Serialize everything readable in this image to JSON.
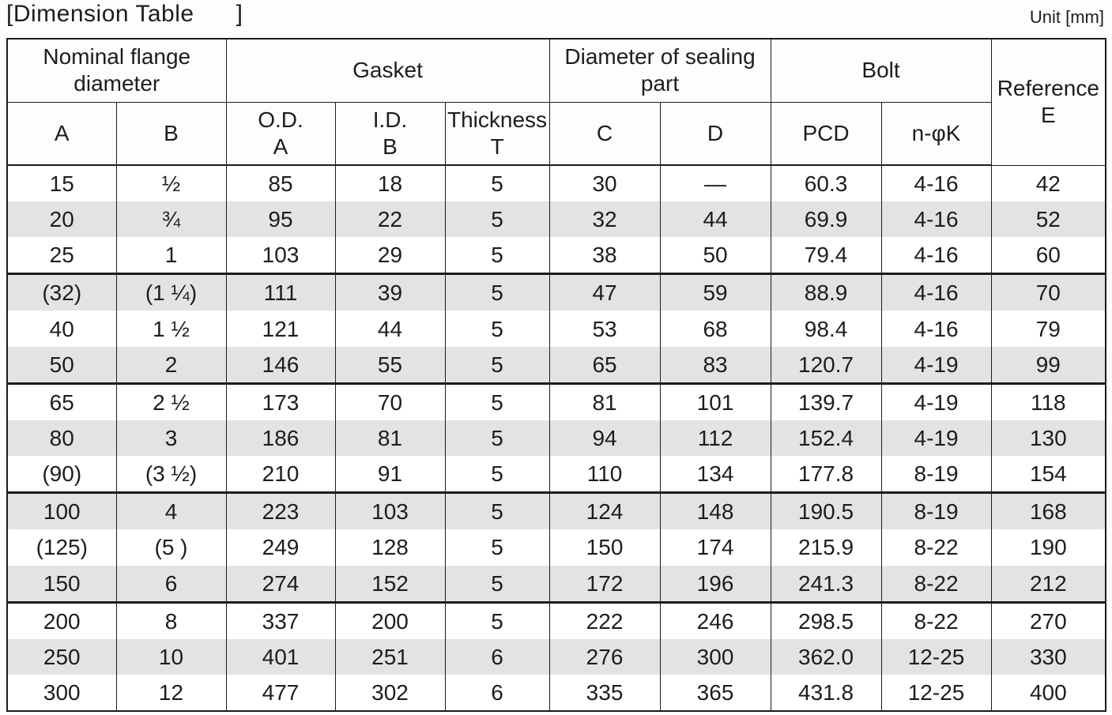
{
  "page": {
    "title": "[Dimension Table      ]",
    "unit_label": "Unit [mm]"
  },
  "colors": {
    "stripe": "#e3e3e3",
    "border": "#1c1c1c",
    "text": "#1d1d1d",
    "background": "#fdfdfd"
  },
  "table": {
    "group_headers": [
      {
        "lines": [
          "Nominal flange",
          "diameter"
        ],
        "span": 2
      },
      {
        "lines": [
          "Gasket"
        ],
        "span": 3
      },
      {
        "lines": [
          "Diameter of sealing",
          "part"
        ],
        "span": 2
      },
      {
        "lines": [
          "Bolt"
        ],
        "span": 2
      }
    ],
    "reference_header": {
      "lines": [
        "Reference",
        "E"
      ]
    },
    "sub_headers": [
      {
        "lines": [
          "A"
        ]
      },
      {
        "lines": [
          "B"
        ]
      },
      {
        "lines": [
          "O.D.",
          "A"
        ]
      },
      {
        "lines": [
          "I.D.",
          "B"
        ]
      },
      {
        "lines": [
          "Thickness",
          "T"
        ]
      },
      {
        "lines": [
          "C"
        ]
      },
      {
        "lines": [
          "D"
        ]
      },
      {
        "lines": [
          "PCD"
        ]
      },
      {
        "lines": [
          "n-φK"
        ]
      }
    ],
    "rows": [
      [
        "15",
        "½",
        "85",
        "18",
        "5",
        "30",
        "—",
        "60.3",
        "4-16",
        "42"
      ],
      [
        "20",
        "¾",
        "95",
        "22",
        "5",
        "32",
        "44",
        "69.9",
        "4-16",
        "52"
      ],
      [
        "25",
        "1",
        "103",
        "29",
        "5",
        "38",
        "50",
        "79.4",
        "4-16",
        "60"
      ],
      [
        "(32)",
        "(1 ¼)",
        "111",
        "39",
        "5",
        "47",
        "59",
        "88.9",
        "4-16",
        "70"
      ],
      [
        "40",
        "1 ½",
        "121",
        "44",
        "5",
        "53",
        "68",
        "98.4",
        "4-16",
        "79"
      ],
      [
        "50",
        "2",
        "146",
        "55",
        "5",
        "65",
        "83",
        "120.7",
        "4-19",
        "99"
      ],
      [
        "65",
        "2 ½",
        "173",
        "70",
        "5",
        "81",
        "101",
        "139.7",
        "4-19",
        "118"
      ],
      [
        "80",
        "3",
        "186",
        "81",
        "5",
        "94",
        "112",
        "152.4",
        "4-19",
        "130"
      ],
      [
        "(90)",
        "(3 ½)",
        "210",
        "91",
        "5",
        "110",
        "134",
        "177.8",
        "8-19",
        "154"
      ],
      [
        "100",
        "4",
        "223",
        "103",
        "5",
        "124",
        "148",
        "190.5",
        "8-19",
        "168"
      ],
      [
        "(125)",
        "(5 )",
        "249",
        "128",
        "5",
        "150",
        "174",
        "215.9",
        "8-22",
        "190"
      ],
      [
        "150",
        "6",
        "274",
        "152",
        "5",
        "172",
        "196",
        "241.3",
        "8-22",
        "212"
      ],
      [
        "200",
        "8",
        "337",
        "200",
        "5",
        "222",
        "246",
        "298.5",
        "8-22",
        "270"
      ],
      [
        "250",
        "10",
        "401",
        "251",
        "6",
        "276",
        "300",
        "362.0",
        "12-25",
        "330"
      ],
      [
        "300",
        "12",
        "477",
        "302",
        "6",
        "335",
        "365",
        "431.8",
        "12-25",
        "400"
      ]
    ],
    "group_break_after": [
      3,
      6,
      9,
      12
    ],
    "shaded_rows": [
      2,
      4,
      6,
      8,
      10,
      12,
      14
    ]
  }
}
